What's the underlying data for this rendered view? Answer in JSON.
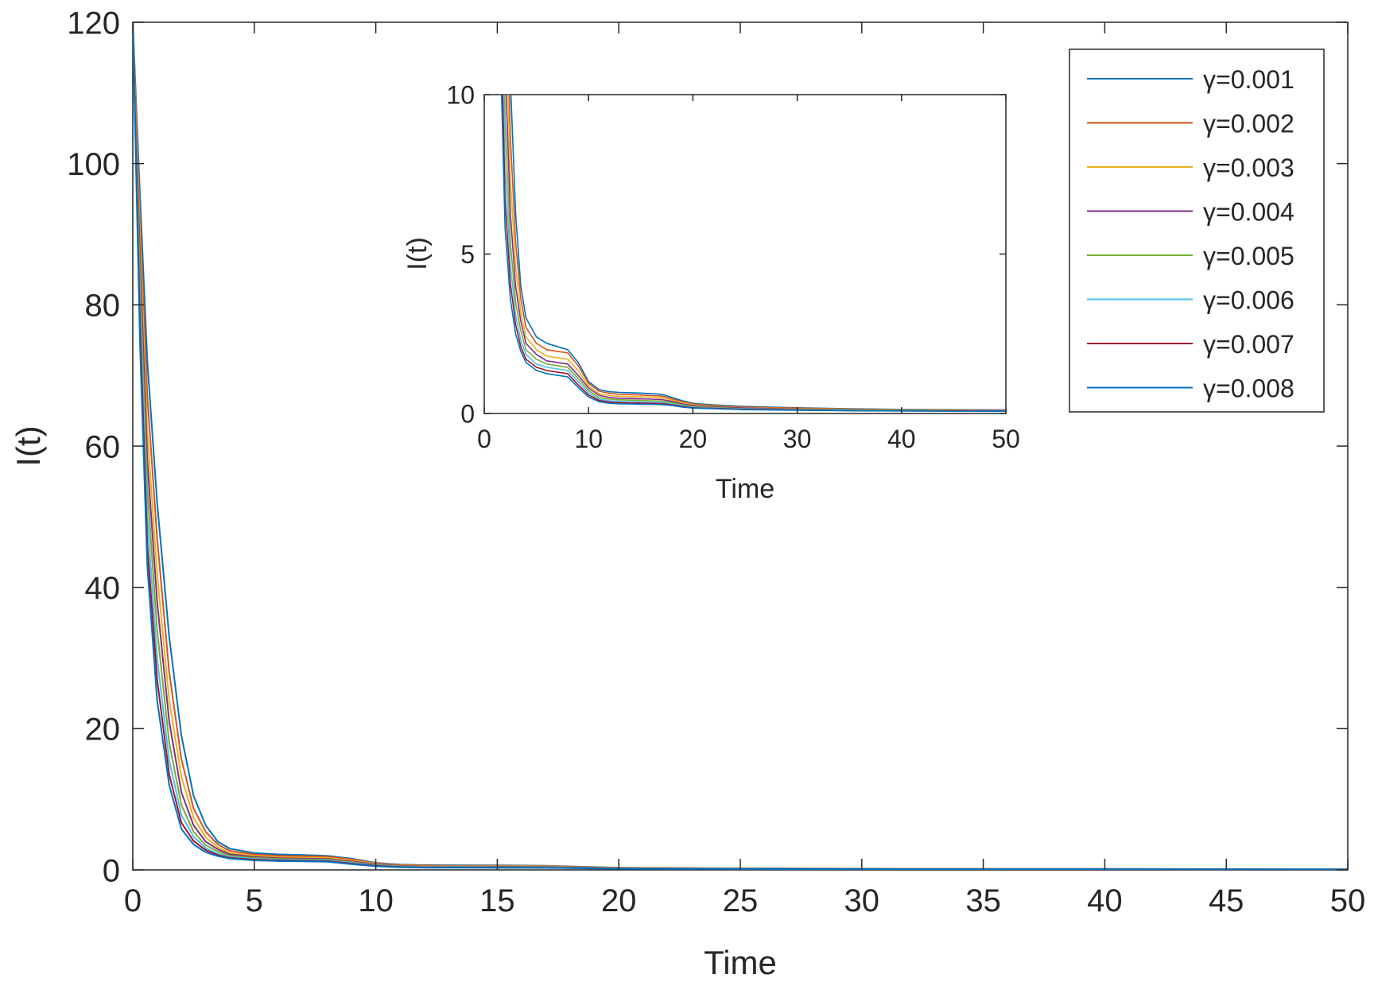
{
  "chart_data": [
    {
      "id": "main",
      "type": "line",
      "title": "",
      "xlabel": "Time",
      "ylabel": "I(t)",
      "xlim": [
        0,
        50
      ],
      "ylim": [
        0,
        120
      ],
      "xticks": [
        0,
        5,
        10,
        15,
        20,
        25,
        30,
        35,
        40,
        45,
        50
      ],
      "yticks": [
        0,
        20,
        40,
        60,
        80,
        100,
        120
      ],
      "grid": false,
      "legend_position": "top-right",
      "series": [
        {
          "name": "γ=0.001",
          "color": "#0072BD",
          "x": [
            0,
            0.3,
            0.6,
            1,
            1.5,
            2,
            2.5,
            3,
            3.5,
            4,
            5,
            6,
            7,
            8,
            9,
            10,
            11,
            12,
            13,
            14,
            15,
            16,
            17,
            18,
            19,
            20,
            22,
            25,
            30,
            35,
            40,
            45,
            50
          ],
          "y": [
            120,
            95,
            72,
            52,
            33,
            19,
            10.5,
            6.3,
            4,
            3,
            2.4,
            2.2,
            2.1,
            2,
            1.6,
            1,
            0.75,
            0.68,
            0.66,
            0.65,
            0.64,
            0.62,
            0.6,
            0.5,
            0.4,
            0.32,
            0.27,
            0.22,
            0.18,
            0.15,
            0.13,
            0.12,
            0.11
          ]
        },
        {
          "name": "γ=0.002",
          "color": "#D95319",
          "x": [
            0,
            0.3,
            0.6,
            1,
            1.5,
            2,
            2.5,
            3,
            3.5,
            4,
            5,
            6,
            7,
            8,
            9,
            10,
            11,
            12,
            13,
            14,
            15,
            16,
            17,
            18,
            19,
            20,
            22,
            25,
            30,
            35,
            40,
            45,
            50
          ],
          "y": [
            120,
            92,
            67,
            47,
            28,
            15.7,
            8.7,
            5.4,
            3.6,
            2.7,
            2.2,
            2,
            1.95,
            1.9,
            1.5,
            0.95,
            0.7,
            0.63,
            0.6,
            0.59,
            0.58,
            0.56,
            0.55,
            0.46,
            0.37,
            0.3,
            0.25,
            0.2,
            0.17,
            0.14,
            0.12,
            0.11,
            0.1
          ]
        },
        {
          "name": "γ=0.003",
          "color": "#EDB120",
          "x": [
            0,
            0.3,
            0.6,
            1,
            1.5,
            2,
            2.5,
            3,
            3.5,
            4,
            5,
            6,
            7,
            8,
            9,
            10,
            11,
            12,
            13,
            14,
            15,
            16,
            17,
            18,
            19,
            20,
            22,
            25,
            30,
            35,
            40,
            45,
            50
          ],
          "y": [
            120,
            89,
            62,
            42,
            24,
            13.2,
            7.4,
            4.6,
            3.2,
            2.4,
            2,
            1.8,
            1.75,
            1.7,
            1.35,
            0.87,
            0.62,
            0.56,
            0.54,
            0.53,
            0.52,
            0.51,
            0.5,
            0.42,
            0.34,
            0.27,
            0.23,
            0.18,
            0.15,
            0.13,
            0.11,
            0.1,
            0.09
          ]
        },
        {
          "name": "γ=0.004",
          "color": "#7E2F8E",
          "x": [
            0,
            0.3,
            0.6,
            1,
            1.5,
            2,
            2.5,
            3,
            3.5,
            4,
            5,
            6,
            7,
            8,
            9,
            10,
            11,
            12,
            13,
            14,
            15,
            16,
            17,
            18,
            19,
            20,
            22,
            25,
            30,
            35,
            40,
            45,
            50
          ],
          "y": [
            120,
            86,
            58,
            38,
            21,
            11,
            6.3,
            4,
            2.9,
            2.2,
            1.85,
            1.65,
            1.6,
            1.55,
            1.2,
            0.8,
            0.57,
            0.5,
            0.48,
            0.47,
            0.46,
            0.45,
            0.44,
            0.38,
            0.3,
            0.25,
            0.21,
            0.17,
            0.14,
            0.12,
            0.1,
            0.09,
            0.09
          ]
        },
        {
          "name": "γ=0.005",
          "color": "#77AC30",
          "x": [
            0,
            0.3,
            0.6,
            1,
            1.5,
            2,
            2.5,
            3,
            3.5,
            4,
            5,
            6,
            7,
            8,
            9,
            10,
            11,
            12,
            13,
            14,
            15,
            16,
            17,
            18,
            19,
            20,
            22,
            25,
            30,
            35,
            40,
            45,
            50
          ],
          "y": [
            120,
            83,
            54,
            34,
            18,
            9.2,
            5.4,
            3.5,
            2.6,
            2,
            1.7,
            1.55,
            1.5,
            1.45,
            1.1,
            0.72,
            0.5,
            0.45,
            0.43,
            0.42,
            0.41,
            0.4,
            0.39,
            0.34,
            0.27,
            0.22,
            0.19,
            0.15,
            0.13,
            0.11,
            0.1,
            0.09,
            0.08
          ]
        },
        {
          "name": "γ=0.006",
          "color": "#4DBEEE",
          "x": [
            0,
            0.3,
            0.6,
            1,
            1.5,
            2,
            2.5,
            3,
            3.5,
            4,
            5,
            6,
            7,
            8,
            9,
            10,
            11,
            12,
            13,
            14,
            15,
            16,
            17,
            18,
            19,
            20,
            22,
            25,
            30,
            35,
            40,
            45,
            50
          ],
          "y": [
            120,
            80,
            50,
            30,
            15.5,
            7.8,
            4.7,
            3.1,
            2.3,
            1.85,
            1.55,
            1.45,
            1.4,
            1.35,
            1,
            0.65,
            0.45,
            0.4,
            0.38,
            0.37,
            0.36,
            0.35,
            0.35,
            0.3,
            0.25,
            0.2,
            0.17,
            0.14,
            0.12,
            0.1,
            0.09,
            0.08,
            0.08
          ]
        },
        {
          "name": "γ=0.007",
          "color": "#A2142F",
          "x": [
            0,
            0.3,
            0.6,
            1,
            1.5,
            2,
            2.5,
            3,
            3.5,
            4,
            5,
            6,
            7,
            8,
            9,
            10,
            11,
            12,
            13,
            14,
            15,
            16,
            17,
            18,
            19,
            20,
            22,
            25,
            30,
            35,
            40,
            45,
            50
          ],
          "y": [
            120,
            77,
            46,
            27,
            13.5,
            6.7,
            4.1,
            2.8,
            2.1,
            1.7,
            1.45,
            1.35,
            1.3,
            1.25,
            0.9,
            0.58,
            0.41,
            0.36,
            0.34,
            0.33,
            0.33,
            0.32,
            0.31,
            0.27,
            0.22,
            0.18,
            0.16,
            0.13,
            0.11,
            0.09,
            0.08,
            0.08,
            0.07
          ]
        },
        {
          "name": "γ=0.008",
          "color": "#0072BD",
          "x": [
            0,
            0.3,
            0.6,
            1,
            1.5,
            2,
            2.5,
            3,
            3.5,
            4,
            5,
            6,
            7,
            8,
            9,
            10,
            11,
            12,
            13,
            14,
            15,
            16,
            17,
            18,
            19,
            20,
            22,
            25,
            30,
            35,
            40,
            45,
            50
          ],
          "y": [
            120,
            74,
            43,
            24,
            12,
            5.8,
            3.6,
            2.5,
            1.95,
            1.6,
            1.35,
            1.25,
            1.2,
            1.15,
            0.82,
            0.52,
            0.37,
            0.32,
            0.3,
            0.3,
            0.29,
            0.29,
            0.28,
            0.25,
            0.2,
            0.17,
            0.15,
            0.12,
            0.1,
            0.09,
            0.08,
            0.07,
            0.07
          ]
        }
      ]
    },
    {
      "id": "inset",
      "type": "line",
      "title": "",
      "xlabel": "Time",
      "ylabel": "I(t)",
      "xlim": [
        0,
        50
      ],
      "ylim": [
        0,
        10
      ],
      "xticks": [
        0,
        10,
        20,
        30,
        40,
        50
      ],
      "yticks": [
        0,
        5,
        10
      ],
      "grid": false,
      "series_source": "main"
    }
  ]
}
